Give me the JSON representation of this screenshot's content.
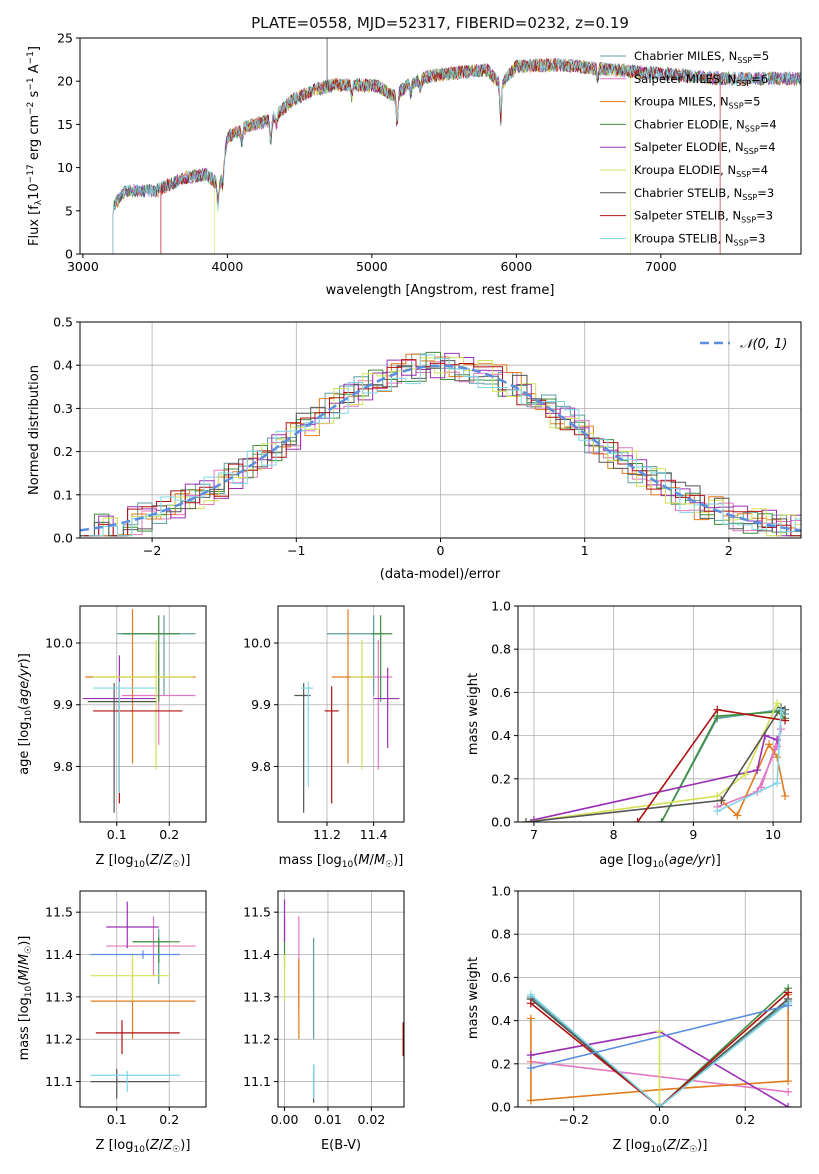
{
  "figure_title": "PLATE=0558, MJD=52317, FIBERID=0232, z=0.19",
  "models": [
    {
      "name": "Chabrier MILES",
      "nssp": "5",
      "color": "#5f9ea0"
    },
    {
      "name": "Salpeter MILES",
      "nssp": "6",
      "color": "#e377c2"
    },
    {
      "name": "Kroupa MILES",
      "nssp": "5",
      "color": "#e07b1e"
    },
    {
      "name": "Chabrier ELODIE",
      "nssp": "4",
      "color": "#3f8f3f"
    },
    {
      "name": "Salpeter ELODIE",
      "nssp": "4",
      "color": "#9b30b5"
    },
    {
      "name": "Kroupa ELODIE",
      "nssp": "4",
      "color": "#d4e157"
    },
    {
      "name": "Chabrier STELIB",
      "nssp": "3",
      "color": "#555555"
    },
    {
      "name": "Salpeter STELIB",
      "nssp": "3",
      "color": "#b01010"
    },
    {
      "name": "Kroupa STELIB",
      "nssp": "3",
      "color": "#7fd6e8"
    }
  ],
  "chart_data": [
    {
      "id": "spectrum",
      "type": "line",
      "title": "PLATE=0558, MJD=52317, FIBERID=0232, z=0.19",
      "xlabel": "wavelength [Angstrom, rest frame]",
      "ylabel": "Flux [f_λ 10^-17 erg cm^-2 s^-1 A^-1]",
      "xlim": [
        2980,
        7970
      ],
      "ylim": [
        0,
        25
      ],
      "xticks": [
        3000,
        4000,
        5000,
        6000,
        7000
      ],
      "yticks": [
        0,
        5,
        10,
        15,
        20,
        25
      ],
      "grid": false,
      "legend": "upper right",
      "continuum": [
        [
          3210,
          5.5
        ],
        [
          3300,
          7.3
        ],
        [
          3500,
          7.3
        ],
        [
          3700,
          8.8
        ],
        [
          3850,
          9.2
        ],
        [
          3950,
          8.0
        ],
        [
          4000,
          13.5
        ],
        [
          4150,
          14.8
        ],
        [
          4300,
          15.5
        ],
        [
          4450,
          17.8
        ],
        [
          4600,
          19.0
        ],
        [
          4750,
          19.6
        ],
        [
          4900,
          19.6
        ],
        [
          5050,
          19.4
        ],
        [
          5150,
          18.2
        ],
        [
          5250,
          19.5
        ],
        [
          5400,
          20.6
        ],
        [
          5600,
          21.0
        ],
        [
          5800,
          21.3
        ],
        [
          5890,
          19.5
        ],
        [
          6000,
          21.7
        ],
        [
          6300,
          21.9
        ],
        [
          6600,
          21.4
        ],
        [
          6900,
          21.0
        ],
        [
          7200,
          20.6
        ],
        [
          7400,
          20.3
        ]
      ],
      "absorption_lines": [
        [
          3934,
          -2.5
        ],
        [
          3969,
          -2.0
        ],
        [
          4101,
          -1.5
        ],
        [
          4300,
          -2.6
        ],
        [
          4340,
          -1.2
        ],
        [
          4861,
          -1.3
        ],
        [
          5175,
          -3.6
        ],
        [
          5270,
          -1.2
        ],
        [
          5335,
          -1.0
        ],
        [
          5892,
          -3.9
        ],
        [
          6563,
          -1.2
        ]
      ],
      "model_start_wavelengths": [
        3210,
        3540,
        3210,
        3210,
        3210,
        3910,
        3210,
        3540,
        3210
      ],
      "model_end_wavelengths": [
        7970,
        7970,
        7970,
        7970,
        7970,
        6790,
        7970,
        7410,
        7970
      ]
    },
    {
      "id": "residual-histogram",
      "type": "histogram",
      "xlabel": "(data-model)/error",
      "ylabel": "Normed distribution",
      "xlim": [
        -2.5,
        2.5
      ],
      "ylim": [
        0,
        0.5
      ],
      "xticks": [
        -2,
        -1,
        0,
        1,
        2
      ],
      "yticks": [
        0,
        0.1,
        0.2,
        0.3,
        0.4,
        0.5
      ],
      "grid": true,
      "legend": "upper right",
      "bin_width": 0.1,
      "reference_curve": {
        "name": "N(0, 1)",
        "mean": 0,
        "sigma": 1,
        "color": "#5b8ee0"
      }
    },
    {
      "id": "age-vs-metallicity",
      "type": "errorbar",
      "xlabel": "Z [log10(Z/Z☉)]",
      "ylabel": "age [log10(age/yr)]",
      "xlim": [
        0.03,
        0.27
      ],
      "ylim": [
        9.71,
        10.06
      ],
      "xticks": [
        0.1,
        0.2
      ],
      "yticks": [
        9.8,
        9.9,
        10.0
      ],
      "grid": true,
      "points": [
        {
          "x": 0.19,
          "y": 10.015,
          "xerr": [
            0.09,
            0.06
          ],
          "yerr": [
            0.1,
            0.03
          ]
        },
        {
          "x": 0.18,
          "y": 9.915,
          "xerr": [
            0.07,
            0.07
          ],
          "yerr": [
            0.08,
            0.07
          ]
        },
        {
          "x": 0.13,
          "y": 9.945,
          "xerr": [
            0.09,
            0.12
          ],
          "yerr": [
            0.14,
            0.11
          ]
        },
        {
          "x": 0.18,
          "y": 10.015,
          "xerr": [
            0.07,
            0.04
          ],
          "yerr": [
            0.11,
            0.03
          ]
        },
        {
          "x": 0.105,
          "y": 9.91,
          "xerr": [
            0.07,
            0.07
          ],
          "yerr": [
            0.15,
            0.07
          ]
        },
        {
          "x": 0.175,
          "y": 9.945,
          "xerr": [
            0.12,
            0.07
          ],
          "yerr": [
            0.15,
            0.06
          ]
        },
        {
          "x": 0.095,
          "y": 9.905,
          "xerr": [
            0.05,
            0.08
          ],
          "yerr": [
            0.18,
            0.03
          ]
        },
        {
          "x": 0.105,
          "y": 9.89,
          "xerr": [
            0.05,
            0.12
          ],
          "yerr": [
            0.15,
            0.04
          ]
        },
        {
          "x": 0.105,
          "y": 9.927,
          "xerr": [
            0.05,
            0.07
          ],
          "yerr": [
            0.17,
            0.01
          ]
        }
      ]
    },
    {
      "id": "age-vs-mass",
      "type": "errorbar",
      "xlabel": "mass [log10(M/M☉)]",
      "ylabel": "",
      "xlim": [
        10.99,
        11.53
      ],
      "ylim": [
        9.71,
        10.06
      ],
      "xticks": [
        11.2,
        11.4
      ],
      "yticks": [
        9.8,
        9.9,
        10.0
      ],
      "grid": true,
      "points": [
        {
          "x": 11.4,
          "y": 10.015,
          "xerr": [
            0.2,
            0.04
          ],
          "yerr": [
            0.1,
            0.03
          ]
        },
        {
          "x": 11.42,
          "y": 9.945,
          "xerr": [
            0.05,
            0.06
          ],
          "yerr": [
            0.15,
            0.06
          ]
        },
        {
          "x": 11.29,
          "y": 9.945,
          "xerr": [
            0.07,
            0.1
          ],
          "yerr": [
            0.14,
            0.11
          ]
        },
        {
          "x": 11.43,
          "y": 10.015,
          "xerr": [
            0.04,
            0.05
          ],
          "yerr": [
            0.11,
            0.03
          ]
        },
        {
          "x": 11.46,
          "y": 9.91,
          "xerr": [
            0.06,
            0.05
          ],
          "yerr": [
            0.08,
            0.05
          ]
        },
        {
          "x": 11.35,
          "y": 9.945,
          "xerr": [
            0.05,
            0.05
          ],
          "yerr": [
            0.15,
            0.06
          ]
        },
        {
          "x": 11.1,
          "y": 9.915,
          "xerr": [
            0.04,
            0.03
          ],
          "yerr": [
            0.19,
            0.02
          ]
        },
        {
          "x": 11.22,
          "y": 9.89,
          "xerr": [
            0.03,
            0.03
          ],
          "yerr": [
            0.15,
            0.04
          ]
        },
        {
          "x": 11.12,
          "y": 9.927,
          "xerr": [
            0.03,
            0.02
          ],
          "yerr": [
            0.16,
            0.01
          ]
        }
      ]
    },
    {
      "id": "mass-weight-vs-age",
      "type": "line",
      "xlabel": "age [log10(age/yr)]",
      "ylabel": "mass weight",
      "xlim": [
        6.8,
        10.35
      ],
      "ylim": [
        0,
        1.0
      ],
      "xticks": [
        7,
        8,
        9,
        10
      ],
      "yticks": [
        0,
        0.2,
        0.4,
        0.6,
        0.8,
        1.0
      ],
      "grid": true,
      "series": [
        {
          "x": [
            8.6,
            9.3,
            10.1,
            10.15
          ],
          "y": [
            0,
            0.48,
            0.52,
            0.5
          ]
        },
        {
          "x": [
            9.3,
            9.8,
            10.05,
            10.1,
            9.85
          ],
          "y": [
            0.07,
            0.14,
            0.35,
            0.43,
            0.16
          ]
        },
        {
          "x": [
            9.35,
            9.55,
            9.95,
            10.05,
            10.15
          ],
          "y": [
            0.1,
            0.03,
            0.36,
            0.3,
            0.12
          ]
        },
        {
          "x": [
            8.6,
            9.3,
            10.05,
            10.15
          ],
          "y": [
            0,
            0.49,
            0.51,
            0.48
          ]
        },
        {
          "x": [
            7,
            9.8,
            9.9,
            10.05
          ],
          "y": [
            0.01,
            0.24,
            0.4,
            0.38
          ]
        },
        {
          "x": [
            6.9,
            9.3,
            9.65,
            10.05,
            10.1
          ],
          "y": [
            0,
            0.12,
            0.22,
            0.55,
            0.52
          ]
        },
        {
          "x": [
            6.9,
            9.35,
            10.1,
            10.15
          ],
          "y": [
            0,
            0.1,
            0.53,
            0.52
          ]
        },
        {
          "x": [
            8.3,
            9.3,
            10.15
          ],
          "y": [
            0,
            0.52,
            0.47
          ]
        },
        {
          "x": [
            9.3,
            10.05,
            10.1
          ],
          "y": [
            0.05,
            0.18,
            0.52
          ]
        }
      ]
    },
    {
      "id": "mass-vs-metallicity",
      "type": "errorbar",
      "xlabel": "Z [log10(Z/Z☉)]",
      "ylabel": "mass [log10(M/M☉)]",
      "xlim": [
        0.03,
        0.27
      ],
      "ylim": [
        11.04,
        11.55
      ],
      "xticks": [
        0.1,
        0.2
      ],
      "yticks": [
        11.1,
        11.2,
        11.3,
        11.4,
        11.5
      ],
      "grid": true,
      "points": [
        {
          "x": 0.18,
          "y": 11.43,
          "xerr": [
            0.05,
            0.02
          ],
          "yerr": [
            0.1,
            0.03
          ]
        },
        {
          "x": 0.17,
          "y": 11.42,
          "xerr": [
            0.09,
            0.08
          ],
          "yerr": [
            0.07,
            0.07
          ]
        },
        {
          "x": 0.13,
          "y": 11.29,
          "xerr": [
            0.08,
            0.12
          ],
          "yerr": [
            0.09,
            0.1
          ]
        },
        {
          "x": 0.18,
          "y": 11.43,
          "xerr": [
            0.05,
            0.04
          ],
          "yerr": [
            0.05,
            0.01
          ]
        },
        {
          "x": 0.12,
          "y": 11.465,
          "xerr": [
            0.04,
            0.06
          ],
          "yerr": [
            0.05,
            0.06
          ]
        },
        {
          "x": 0.13,
          "y": 11.35,
          "xerr": [
            0.08,
            0.07
          ],
          "yerr": [
            0.06,
            0.05
          ]
        },
        {
          "x": 0.1,
          "y": 11.1,
          "xerr": [
            0.05,
            0.1
          ],
          "yerr": [
            0.04,
            0.03
          ]
        },
        {
          "x": 0.11,
          "y": 11.215,
          "xerr": [
            0.05,
            0.11
          ],
          "yerr": [
            0.05,
            0.03
          ]
        },
        {
          "x": 0.12,
          "y": 11.115,
          "xerr": [
            0.07,
            0.1
          ],
          "yerr": [
            0.04,
            0.01
          ]
        },
        {
          "x": 0.15,
          "y": 11.4,
          "xerr": [
            0.1,
            0.07
          ],
          "yerr": [
            0.01,
            0.01
          ]
        }
      ]
    },
    {
      "id": "mass-vs-extinction",
      "type": "errorbar",
      "xlabel": "E(B-V)",
      "ylabel": "",
      "xlim": [
        -0.0015,
        0.0275
      ],
      "ylim": [
        11.04,
        11.55
      ],
      "xticks": [
        0.0,
        0.01,
        0.02
      ],
      "yticks": [
        11.1,
        11.2,
        11.3,
        11.4,
        11.5
      ],
      "grid": true,
      "points": [
        {
          "x": 0.0067,
          "y": 11.32,
          "xerr": [
            0,
            0
          ],
          "yerr": [
            0.12,
            0.12
          ]
        },
        {
          "x": 0.0033,
          "y": 11.39,
          "xerr": [
            0,
            0
          ],
          "yerr": [
            0.12,
            0.1
          ]
        },
        {
          "x": 0.0033,
          "y": 11.29,
          "xerr": [
            0,
            0
          ],
          "yerr": [
            0.09,
            0.1
          ]
        },
        {
          "x": 0.0,
          "y": 11.43,
          "xerr": [
            0,
            0
          ],
          "yerr": [
            0.06,
            0.06
          ]
        },
        {
          "x": 0.0,
          "y": 11.47,
          "xerr": [
            0,
            0
          ],
          "yerr": [
            0.04,
            0.06
          ]
        },
        {
          "x": 0.0,
          "y": 11.35,
          "xerr": [
            0,
            0
          ],
          "yerr": [
            0.06,
            0.05
          ]
        },
        {
          "x": 0.0067,
          "y": 11.1,
          "xerr": [
            0,
            0
          ],
          "yerr": [
            0.05,
            0.04
          ]
        },
        {
          "x": 0.0273,
          "y": 11.2,
          "xerr": [
            0,
            0
          ],
          "yerr": [
            0.04,
            0.04
          ]
        },
        {
          "x": 0.0067,
          "y": 11.1,
          "xerr": [
            0,
            0
          ],
          "yerr": [
            0.04,
            0.04
          ]
        }
      ]
    },
    {
      "id": "mass-weight-vs-metallicity",
      "type": "line",
      "xlabel": "Z [log10(Z/Z☉)]",
      "ylabel": "mass weight",
      "xlim": [
        -0.33,
        0.33
      ],
      "ylim": [
        0,
        1.0
      ],
      "xticks": [
        -0.2,
        0.0,
        0.2
      ],
      "yticks": [
        0,
        0.2,
        0.4,
        0.6,
        0.8,
        1.0
      ],
      "grid": true,
      "series": [
        {
          "x": [
            -0.3,
            0.0,
            0.3
          ],
          "y": [
            0.51,
            0.0,
            0.49
          ]
        },
        {
          "x": [
            -0.3,
            0.3
          ],
          "y": [
            0.21,
            0.07
          ]
        },
        {
          "x": [
            -0.3,
            -0.3,
            0.0,
            0.3,
            0.3
          ],
          "y": [
            0.41,
            0.03,
            0.08,
            0.12,
            0.52
          ]
        },
        {
          "x": [
            -0.3,
            0.0,
            0.3
          ],
          "y": [
            0.5,
            0.0,
            0.55
          ]
        },
        {
          "x": [
            -0.3,
            0.0,
            0.3
          ],
          "y": [
            0.24,
            0.35,
            0.0
          ]
        },
        {
          "x": [
            0.0,
            0.0,
            0.3
          ],
          "y": [
            0.35,
            0.0,
            0.5
          ]
        },
        {
          "x": [
            -0.3,
            0.0,
            0.3
          ],
          "y": [
            0.5,
            0.0,
            0.5
          ]
        },
        {
          "x": [
            -0.3,
            0.0,
            0.3
          ],
          "y": [
            0.48,
            0.0,
            0.53
          ]
        },
        {
          "x": [
            -0.3,
            0.0,
            0.3
          ],
          "y": [
            0.52,
            0.0,
            0.48
          ]
        },
        {
          "x": [
            -0.3,
            0.3
          ],
          "y": [
            0.18,
            0.47
          ]
        }
      ],
      "series_colors": [
        "#5f9ea0",
        "#e377c2",
        "#e07b1e",
        "#3f8f3f",
        "#9b30b5",
        "#d4e157",
        "#555555",
        "#b01010",
        "#7fd6e8",
        "#5b8ee0"
      ]
    }
  ]
}
